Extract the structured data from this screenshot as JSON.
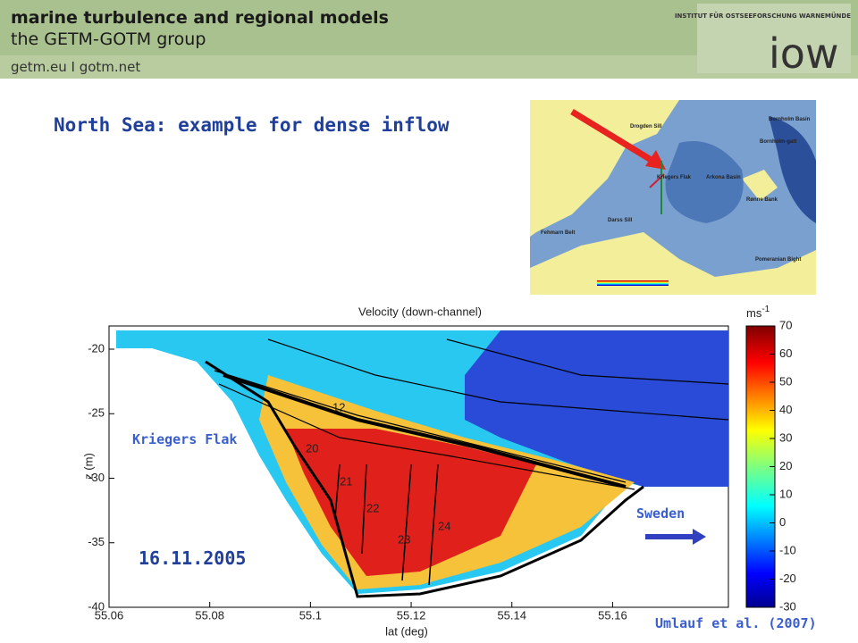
{
  "header": {
    "title": "marine turbulence and regional models",
    "subtitle": "the GETM-GOTM group",
    "links": "getm.eu  I  gotm.net",
    "institute": "INSTITUT FÜR OSTSEEFORSCHUNG WARNEMÜNDE",
    "logo": "iow"
  },
  "slide_title": "North Sea: example for dense inflow",
  "map": {
    "labels": [
      "Drogden Sill",
      "Bornholm Basin",
      "Bornholm-gatt",
      "Kriegers Flak",
      "Arkona Basin",
      "Darss Sill",
      "Fehmarn Belt",
      "Rønne Bank",
      "Pomeranian Bight"
    ]
  },
  "chart_data": {
    "type": "heatmap",
    "title": "Velocity (down-channel)",
    "x_label": "lat (deg)",
    "y_label": "z (m)",
    "xlim": [
      55.06,
      55.183
    ],
    "xticks": [
      55.06,
      55.08,
      55.1,
      55.12,
      55.14,
      55.16
    ],
    "ylim": [
      -40,
      -18.2
    ],
    "yticks": [
      -20,
      -25,
      -30,
      -35,
      -40
    ],
    "colorbar": {
      "unit": "ms",
      "unit_exponent": "-1",
      "clim": [
        -30,
        70
      ],
      "ticks": [
        70,
        60,
        50,
        40,
        30,
        20,
        10,
        0,
        -10,
        -20,
        -30
      ]
    },
    "contour_labels": [
      "12",
      "20",
      "21",
      "22",
      "23",
      "24"
    ]
  },
  "annotations": {
    "left": "Kriegers Flak",
    "date": "16.11.2005",
    "right": "Sweden",
    "citation": "Umlauf et al. (2007)"
  }
}
